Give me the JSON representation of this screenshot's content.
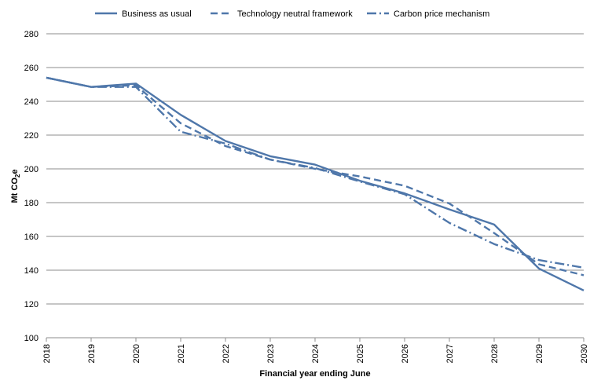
{
  "chart_data": {
    "type": "line",
    "title": "",
    "xlabel": "Financial year ending June",
    "ylabel": "Mt CO2e",
    "ylabel_parts": {
      "main": "Mt CO",
      "sub": "2",
      "suffix": "e"
    },
    "ylim": [
      100,
      280
    ],
    "ytick_step": 20,
    "yticks": [
      "100",
      "120",
      "140",
      "160",
      "180",
      "200",
      "220",
      "240",
      "260",
      "280"
    ],
    "categories": [
      "2018",
      "2019",
      "2020",
      "2021",
      "2022",
      "2023",
      "2024",
      "2025",
      "2026",
      "2027",
      "2028",
      "2029",
      "2030"
    ],
    "grid": true,
    "legend_position": "top",
    "series": [
      {
        "name": "Business as usual",
        "style": "solid",
        "color": "#4f77aa",
        "values": [
          254,
          248.5,
          250.5,
          232,
          216.5,
          207.5,
          202.5,
          193,
          185.5,
          176,
          167,
          141,
          128
        ]
      },
      {
        "name": "Technology neutral framework",
        "style": "dash",
        "color": "#4f77aa",
        "values": [
          254,
          248.5,
          249.5,
          227,
          213.5,
          205.5,
          200,
          195.5,
          190,
          179.5,
          162,
          143.5,
          137
        ]
      },
      {
        "name": "Carbon price mechanism",
        "style": "dashdot",
        "color": "#4f77aa",
        "values": [
          254,
          248.5,
          248.5,
          222,
          215,
          205.5,
          200.5,
          192.5,
          185,
          168,
          155.5,
          146,
          141.5
        ]
      }
    ]
  }
}
